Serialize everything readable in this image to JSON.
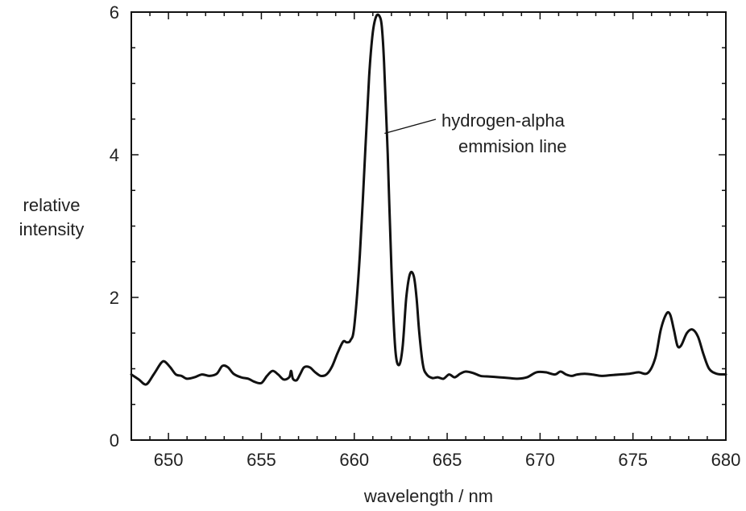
{
  "chart_data": {
    "type": "line",
    "xlabel": "wavelength / nm",
    "ylabel_line1": "relative",
    "ylabel_line2": "intensity",
    "xlim": [
      648,
      680
    ],
    "ylim": [
      0,
      6
    ],
    "x_ticks": [
      650,
      655,
      660,
      665,
      670,
      675,
      680
    ],
    "y_ticks": [
      0,
      2,
      4,
      6
    ],
    "grid": false,
    "annotation": {
      "line1": "hydrogen-alpha",
      "line2": "emmision line",
      "points_to": [
        661.5,
        4.3
      ]
    },
    "series": [
      {
        "x": [
          648.0,
          648.4,
          648.8,
          649.2,
          649.6,
          649.8,
          650.1,
          650.4,
          650.7,
          651.0,
          651.4,
          651.8,
          652.2,
          652.6,
          652.9,
          653.2,
          653.5,
          653.9,
          654.3,
          654.6,
          655.0,
          655.3,
          655.6,
          655.9,
          656.2,
          656.5,
          656.6,
          656.7,
          656.9,
          657.1,
          657.3,
          657.6,
          657.9,
          658.2,
          658.5,
          658.8,
          659.1,
          659.4,
          659.6,
          659.8,
          660.0,
          660.3,
          660.6,
          660.8,
          661.0,
          661.2,
          661.4,
          661.5,
          661.6,
          661.8,
          662.0,
          662.2,
          662.4,
          662.6,
          662.8,
          663.0,
          663.2,
          663.35,
          663.5,
          663.7,
          663.9,
          664.2,
          664.5,
          664.8,
          665.1,
          665.4,
          665.7,
          666.0,
          666.4,
          666.8,
          667.3,
          667.8,
          668.3,
          668.8,
          669.3,
          669.8,
          670.3,
          670.8,
          671.1,
          671.4,
          671.7,
          672.0,
          672.4,
          672.8,
          673.3,
          673.8,
          674.3,
          674.8,
          675.3,
          675.8,
          676.2,
          676.5,
          676.8,
          677.0,
          677.2,
          677.4,
          677.6,
          677.9,
          678.2,
          678.5,
          678.8,
          679.1,
          679.5,
          680.0
        ],
        "y": [
          0.92,
          0.85,
          0.78,
          0.92,
          1.08,
          1.1,
          1.02,
          0.92,
          0.9,
          0.86,
          0.88,
          0.92,
          0.9,
          0.93,
          1.04,
          1.02,
          0.93,
          0.88,
          0.86,
          0.82,
          0.8,
          0.9,
          0.97,
          0.92,
          0.85,
          0.88,
          0.97,
          0.86,
          0.84,
          0.93,
          1.02,
          1.02,
          0.95,
          0.9,
          0.92,
          1.03,
          1.22,
          1.38,
          1.37,
          1.4,
          1.6,
          2.6,
          4.1,
          5.1,
          5.72,
          5.95,
          5.92,
          5.75,
          5.3,
          4.0,
          2.4,
          1.3,
          1.05,
          1.3,
          2.0,
          2.33,
          2.3,
          2.0,
          1.5,
          1.05,
          0.92,
          0.87,
          0.88,
          0.86,
          0.92,
          0.88,
          0.93,
          0.96,
          0.94,
          0.9,
          0.89,
          0.88,
          0.87,
          0.86,
          0.88,
          0.95,
          0.95,
          0.92,
          0.96,
          0.92,
          0.9,
          0.92,
          0.93,
          0.92,
          0.9,
          0.91,
          0.92,
          0.93,
          0.95,
          0.94,
          1.15,
          1.55,
          1.77,
          1.76,
          1.55,
          1.32,
          1.33,
          1.5,
          1.55,
          1.45,
          1.2,
          1.0,
          0.93,
          0.92
        ]
      }
    ]
  }
}
